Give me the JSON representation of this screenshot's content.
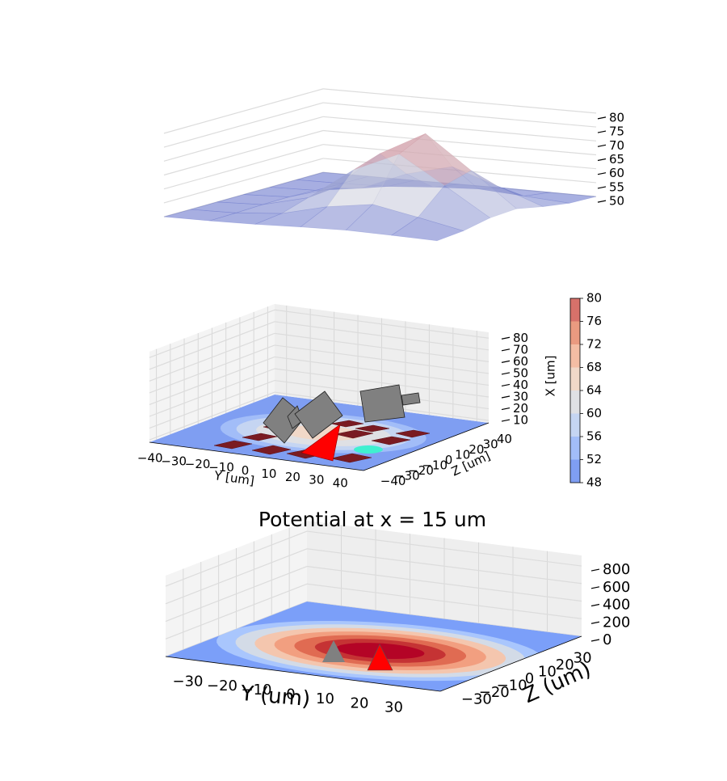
{
  "chart_data": [
    {
      "type": "surface",
      "colormap": "coolwarm",
      "zlim": [
        48,
        82
      ],
      "zticks": [
        50,
        55,
        60,
        65,
        70,
        75,
        80
      ],
      "z": [
        [
          50.0,
          50.0,
          50.0,
          50.0,
          50.0,
          50.0,
          50.0
        ],
        [
          50.0,
          50.2,
          50.5,
          50.6,
          50.3,
          50.1,
          50.0
        ],
        [
          50.2,
          51.4,
          54.4,
          55.3,
          52.5,
          50.5,
          50.0
        ],
        [
          50.7,
          55.3,
          65.9,
          69.1,
          59.1,
          51.7,
          50.1
        ],
        [
          51.0,
          57.6,
          73.0,
          77.7,
          63.2,
          52.5,
          50.2
        ],
        [
          50.6,
          54.4,
          63.2,
          65.9,
          57.6,
          51.4,
          50.1
        ],
        [
          50.1,
          51.0,
          53.0,
          53.6,
          51.7,
          50.3,
          50.0
        ]
      ]
    },
    {
      "type": "contour3d",
      "xlabel": "Y [um]",
      "ylabel": "Z [um]",
      "colorbar_label": "X [um]",
      "grid": true,
      "xlim": [
        -45,
        45
      ],
      "xticks": [
        {
          "value": -40,
          "label": "−40"
        },
        {
          "value": -30,
          "label": "−30"
        },
        {
          "value": -20,
          "label": "−20"
        },
        {
          "value": -10,
          "label": "−10"
        },
        0,
        10,
        20,
        30,
        40
      ],
      "ylim": [
        -45,
        45
      ],
      "yticks": [
        {
          "value": -40,
          "label": "−40"
        },
        {
          "value": -30,
          "label": "−30"
        },
        {
          "value": -20,
          "label": "−20"
        },
        {
          "value": -10,
          "label": "−10"
        },
        0,
        10,
        20,
        30,
        40
      ],
      "zlim": [
        8,
        85
      ],
      "zticks": [
        10,
        20,
        30,
        40,
        50,
        60,
        70,
        80
      ],
      "levels": [
        48,
        52,
        56,
        60,
        64,
        68,
        72,
        76,
        80
      ],
      "colors": [
        "#7f9ef2",
        "#a2bdf8",
        "#c5d5f2",
        "#dfe0e4",
        "#f1d8c8",
        "#f4bda4",
        "#ea9a80",
        "#d7716a"
      ]
    },
    {
      "type": "contour3d",
      "title": "Potential at x = 15 um",
      "xlabel": "Y (um)",
      "ylabel": "Z (um)",
      "grid": true,
      "xlim": [
        -40,
        40
      ],
      "xticks": [
        {
          "value": -30,
          "label": "−30"
        },
        {
          "value": -20,
          "label": "−20"
        },
        {
          "value": -10,
          "label": "−10"
        },
        0,
        10,
        20,
        30
      ],
      "ylim": [
        -40,
        40
      ],
      "yticks": [
        {
          "value": -30,
          "label": "−30"
        },
        {
          "value": -20,
          "label": "−20"
        },
        {
          "value": -10,
          "label": "−10"
        },
        0,
        10,
        20,
        30
      ],
      "zlim": [
        0,
        920
      ],
      "zticks": [
        0,
        200,
        400,
        600,
        800
      ],
      "levels": [
        0,
        100,
        200,
        300,
        400,
        500,
        600,
        700
      ],
      "colors": [
        "#7b9ff9",
        "#a9c6fd",
        "#d3dbe7",
        "#f4c6ae",
        "#f29f80",
        "#e06b52",
        "#c53334",
        "#b40426"
      ]
    }
  ]
}
